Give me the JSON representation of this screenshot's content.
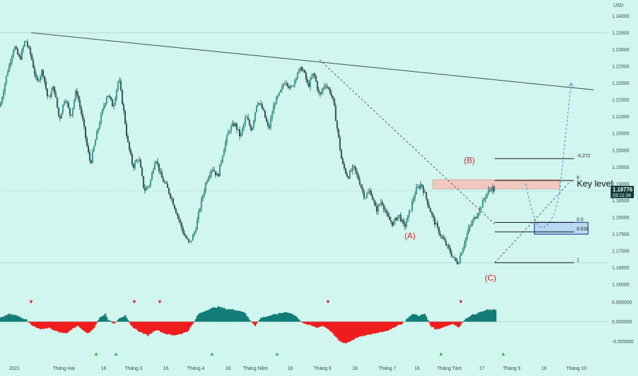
{
  "chart_data": {
    "type": "candlestick",
    "symbol_currency": "USD",
    "price_axis": {
      "ticks": [
        "1.24000",
        "1.23500",
        "1.23000",
        "1.22500",
        "1.22000",
        "1.21500",
        "1.21000",
        "1.20500",
        "1.20000",
        "1.19500",
        "1.19000",
        "1.18500",
        "1.18000",
        "1.17500",
        "1.17000",
        "1.16500",
        "1.16000"
      ],
      "ylim": [
        1.158,
        1.2415
      ]
    },
    "oscillator_axis": {
      "ticks": [
        "0.005000",
        "0.000000",
        "-0.005000"
      ],
      "ylim": [
        -0.0065,
        0.006
      ]
    },
    "x_axis": {
      "labels": [
        "2021",
        "Tháng Hai",
        "16",
        "Tháng 3",
        "16",
        "Tháng 4",
        "16",
        "Tháng Năm",
        "16",
        "Tháng 6",
        "16",
        "Tháng 7",
        "16",
        "Tháng Tám",
        "17",
        "Tháng 9",
        "16",
        "Tháng 10"
      ]
    },
    "current_price": {
      "value": "1.18776",
      "countdown": "03:11:34"
    },
    "price_path": [
      [
        0,
        1.213
      ],
      [
        5,
        1.223
      ],
      [
        10,
        1.231
      ],
      [
        14,
        1.227
      ],
      [
        18,
        1.233
      ],
      [
        22,
        1.228
      ],
      [
        26,
        1.22
      ],
      [
        30,
        1.224
      ],
      [
        34,
        1.215
      ],
      [
        38,
        1.219
      ],
      [
        42,
        1.209
      ],
      [
        46,
        1.216
      ],
      [
        50,
        1.21
      ],
      [
        54,
        1.218
      ],
      [
        58,
        1.21
      ],
      [
        62,
        1.2
      ],
      [
        64,
        1.196
      ],
      [
        68,
        1.204
      ],
      [
        72,
        1.211
      ],
      [
        76,
        1.217
      ],
      [
        80,
        1.213
      ],
      [
        84,
        1.2215
      ],
      [
        88,
        1.21
      ],
      [
        90,
        1.203
      ],
      [
        94,
        1.195
      ],
      [
        98,
        1.198
      ],
      [
        102,
        1.188
      ],
      [
        106,
        1.19
      ],
      [
        110,
        1.198
      ],
      [
        114,
        1.192
      ],
      [
        118,
        1.189
      ],
      [
        122,
        1.185
      ],
      [
        126,
        1.18
      ],
      [
        130,
        1.175
      ],
      [
        134,
        1.172
      ],
      [
        138,
        1.176
      ],
      [
        142,
        1.184
      ],
      [
        146,
        1.191
      ],
      [
        150,
        1.195
      ],
      [
        154,
        1.192
      ],
      [
        158,
        1.2
      ],
      [
        162,
        1.206
      ],
      [
        166,
        1.208
      ],
      [
        170,
        1.204
      ],
      [
        174,
        1.21
      ],
      [
        178,
        1.206
      ],
      [
        182,
        1.215
      ],
      [
        186,
        1.212
      ],
      [
        190,
        1.206
      ],
      [
        194,
        1.214
      ],
      [
        198,
        1.217
      ],
      [
        202,
        1.221
      ],
      [
        206,
        1.218
      ],
      [
        210,
        1.223
      ],
      [
        214,
        1.2245
      ],
      [
        218,
        1.219
      ],
      [
        222,
        1.223
      ],
      [
        226,
        1.216
      ],
      [
        230,
        1.22
      ],
      [
        234,
        1.217
      ],
      [
        236,
        1.214
      ],
      [
        238,
        1.208
      ],
      [
        240,
        1.202
      ],
      [
        242,
        1.196
      ],
      [
        246,
        1.192
      ],
      [
        250,
        1.195
      ],
      [
        254,
        1.191
      ],
      [
        258,
        1.186
      ],
      [
        262,
        1.188
      ],
      [
        266,
        1.182
      ],
      [
        270,
        1.185
      ],
      [
        274,
        1.18
      ],
      [
        278,
        1.178
      ],
      [
        282,
        1.181
      ],
      [
        286,
        1.177
      ],
      [
        290,
        1.182
      ],
      [
        294,
        1.188
      ],
      [
        298,
        1.19
      ],
      [
        302,
        1.185
      ],
      [
        306,
        1.18
      ],
      [
        310,
        1.176
      ],
      [
        314,
        1.173
      ],
      [
        318,
        1.17
      ],
      [
        322,
        1.167
      ],
      [
        324,
        1.1665
      ],
      [
        328,
        1.172
      ],
      [
        332,
        1.177
      ],
      [
        336,
        1.18
      ],
      [
        340,
        1.183
      ],
      [
        344,
        1.187
      ],
      [
        348,
        1.189
      ],
      [
        350,
        1.1878
      ]
    ],
    "oscillator_path": [
      [
        0,
        0.001
      ],
      [
        6,
        0.002
      ],
      [
        12,
        0.0015
      ],
      [
        18,
        0.0005
      ],
      [
        22,
        -0.001
      ],
      [
        28,
        -0.002
      ],
      [
        34,
        -0.0015
      ],
      [
        40,
        -0.0025
      ],
      [
        46,
        -0.003
      ],
      [
        50,
        -0.002
      ],
      [
        54,
        -0.001
      ],
      [
        58,
        -0.002
      ],
      [
        62,
        -0.003
      ],
      [
        66,
        -0.0015
      ],
      [
        70,
        0.001
      ],
      [
        74,
        0.002
      ],
      [
        76,
        0.0005
      ],
      [
        80,
        -0.0005
      ],
      [
        84,
        0.001
      ],
      [
        88,
        0.0015
      ],
      [
        92,
        -0.001
      ],
      [
        98,
        -0.0025
      ],
      [
        104,
        -0.0035
      ],
      [
        110,
        -0.002
      ],
      [
        116,
        -0.003
      ],
      [
        122,
        -0.0035
      ],
      [
        128,
        -0.003
      ],
      [
        132,
        -0.0025
      ],
      [
        136,
        -0.0005
      ],
      [
        140,
        0.002
      ],
      [
        146,
        0.003
      ],
      [
        150,
        0.0035
      ],
      [
        154,
        0.0038
      ],
      [
        160,
        0.0032
      ],
      [
        166,
        0.003
      ],
      [
        172,
        0.0025
      ],
      [
        176,
        0.0005
      ],
      [
        180,
        -0.001
      ],
      [
        184,
        0.001
      ],
      [
        190,
        0.0015
      ],
      [
        196,
        0.002
      ],
      [
        202,
        0.0025
      ],
      [
        206,
        0.002
      ],
      [
        210,
        0.001
      ],
      [
        214,
        -0.0005
      ],
      [
        220,
        -0.001
      ],
      [
        224,
        -0.0015
      ],
      [
        228,
        -0.001
      ],
      [
        232,
        -0.002
      ],
      [
        236,
        -0.0035
      ],
      [
        240,
        -0.005
      ],
      [
        244,
        -0.0055
      ],
      [
        248,
        -0.0048
      ],
      [
        252,
        -0.004
      ],
      [
        258,
        -0.0035
      ],
      [
        264,
        -0.003
      ],
      [
        270,
        -0.0025
      ],
      [
        276,
        -0.002
      ],
      [
        280,
        -0.001
      ],
      [
        284,
        -0.0005
      ],
      [
        288,
        0.001
      ],
      [
        292,
        0.002
      ],
      [
        296,
        0.0015
      ],
      [
        300,
        0.002
      ],
      [
        304,
        -0.001
      ],
      [
        308,
        -0.002
      ],
      [
        312,
        -0.0015
      ],
      [
        316,
        -0.001
      ],
      [
        320,
        -0.0005
      ],
      [
        324,
        -0.0015
      ],
      [
        328,
        0.0005
      ],
      [
        332,
        0.0015
      ],
      [
        336,
        0.002
      ],
      [
        340,
        0.0025
      ],
      [
        344,
        0.003
      ],
      [
        350,
        0.003
      ]
    ],
    "sell_markers": [
      22,
      95,
      113,
      232,
      326
    ],
    "buy_markers": [
      68,
      82,
      150,
      196,
      312,
      356
    ],
    "trendline": {
      "from": [
        22,
        1.235
      ],
      "to": [
        420,
        1.218
      ]
    },
    "dashed_trend_down": {
      "from": [
        226,
        1.227
      ],
      "to": [
        350,
        1.178
      ]
    },
    "dashed_trend_up": {
      "from": [
        350,
        1.1665
      ],
      "to": [
        404,
        1.191
      ]
    },
    "fib_levels": [
      {
        "label": "-0.272",
        "value": 1.1975
      },
      {
        "label": "0",
        "value": 1.191
      },
      {
        "label": "0.5",
        "value": 1.1785
      },
      {
        "label": "0.618",
        "value": 1.1757
      },
      {
        "label": "1",
        "value": 1.1665
      }
    ],
    "resistance_zone": {
      "top": 1.1912,
      "bottom": 1.1885
    },
    "support_zone": {
      "top": 1.1785,
      "bottom": 1.175
    },
    "projection_path": [
      [
        372,
        1.19
      ],
      [
        384,
        1.177
      ],
      [
        396,
        1.188
      ],
      [
        404,
        1.22
      ]
    ],
    "annotations": [
      {
        "text": "(A)",
        "value": 1.1745
      },
      {
        "text": "(B)",
        "value": 1.197
      },
      {
        "text": "(C)",
        "value": 1.162
      },
      {
        "text": "Key level",
        "value": 1.19
      }
    ]
  }
}
